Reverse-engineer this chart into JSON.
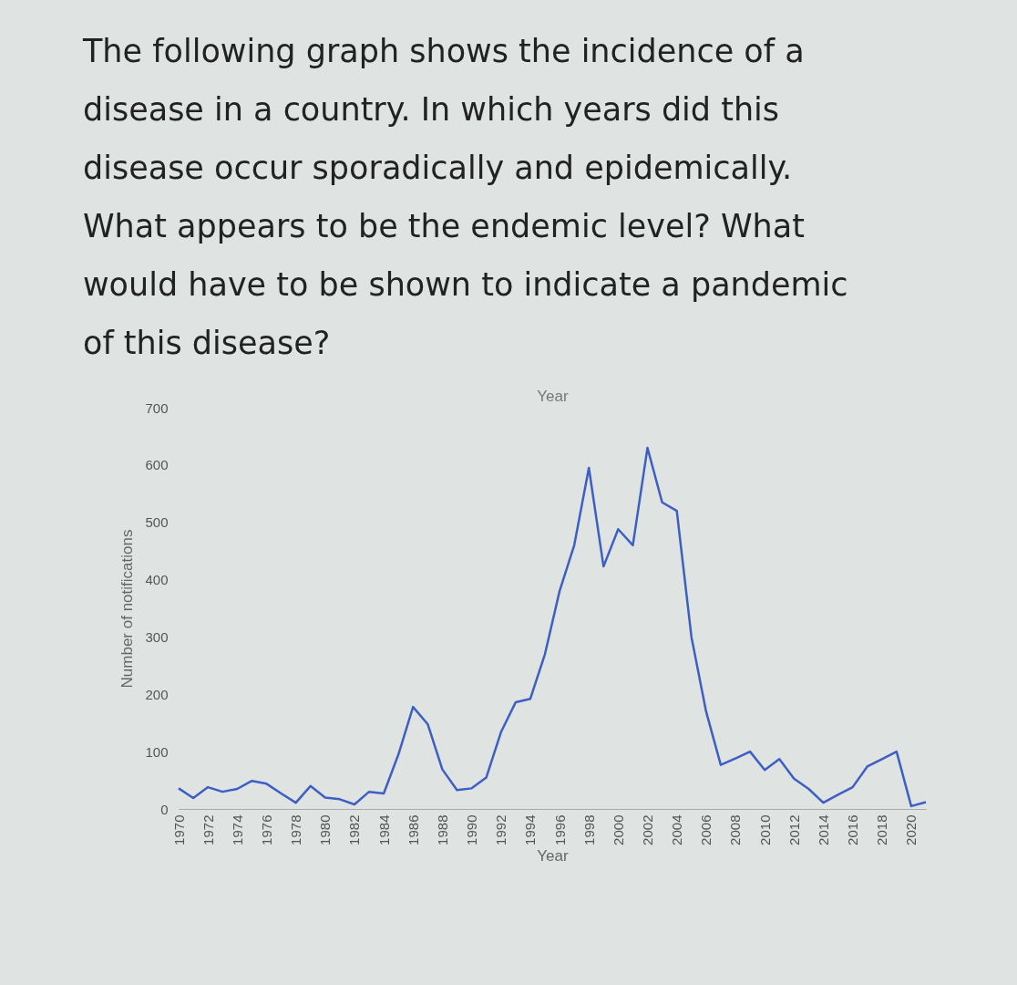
{
  "chart_data": {
    "type": "line",
    "title": "The following graph shows the incidence of a disease in a country. In which years did this disease occur sporadically and epidemically. What appears to be the endemic level? What would have to be shown to indicate a pandemic of this disease?",
    "xlabel": "Year",
    "x2label": "Year",
    "ylabel": "Number of notifications",
    "x": [
      1970,
      1971,
      1972,
      1973,
      1974,
      1975,
      1976,
      1977,
      1978,
      1979,
      1980,
      1981,
      1982,
      1983,
      1984,
      1985,
      1986,
      1987,
      1988,
      1989,
      1990,
      1991,
      1992,
      1993,
      1994,
      1995,
      1996,
      1997,
      1998,
      1999,
      2000,
      2001,
      2002,
      2003,
      2004,
      2005,
      2006,
      2007,
      2008,
      2009,
      2010,
      2011,
      2012,
      2013,
      2014,
      2015,
      2016,
      2017,
      2018,
      2019,
      2020,
      2021
    ],
    "series": [
      {
        "color": "#3d5fc4",
        "values": [
          36,
          19,
          38,
          30,
          35,
          49,
          44,
          27,
          11,
          40,
          20,
          17,
          8,
          30,
          27,
          95,
          178,
          148,
          69,
          33,
          36,
          55,
          134,
          186,
          192,
          270,
          380,
          460,
          595,
          423,
          488,
          460,
          630,
          535,
          520,
          300,
          170,
          77,
          88,
          100,
          68,
          87,
          53,
          35,
          11,
          25,
          38,
          74,
          87,
          100,
          5,
          12
        ]
      }
    ],
    "xlim": [
      1970,
      2021
    ],
    "xticks": [
      1970,
      1972,
      1974,
      1976,
      1978,
      1980,
      1982,
      1984,
      1986,
      1988,
      1990,
      1992,
      1994,
      1996,
      1998,
      2000,
      2002,
      2004,
      2006,
      2008,
      2010,
      2012,
      2014,
      2016,
      2018,
      2020
    ],
    "ylim": [
      0,
      700
    ],
    "yticks": [
      0,
      100,
      200,
      300,
      400,
      500,
      600,
      700
    ],
    "grid": false,
    "marker": "none",
    "line_style": "solid"
  }
}
